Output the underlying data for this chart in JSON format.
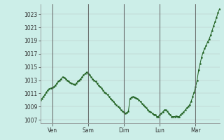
{
  "background_color": "#cceee8",
  "plot_bg_color": "#cceee8",
  "line_color": "#1a5c1a",
  "marker_color": "#1a5c1a",
  "grid_color": "#aaaaaa",
  "yticks": [
    1007,
    1009,
    1011,
    1013,
    1015,
    1017,
    1019,
    1021,
    1023
  ],
  "ylim": [
    1006.5,
    1024.5
  ],
  "xlim": [
    0,
    120
  ],
  "vline_positions": [
    8,
    32,
    56,
    80,
    104
  ],
  "day_positions": [
    8,
    32,
    56,
    80,
    104
  ],
  "day_labels": [
    "Ven",
    "Sam",
    "Dim",
    "Lun",
    "Mar"
  ],
  "y_values": [
    1010.0,
    1010.2,
    1010.5,
    1010.8,
    1011.2,
    1011.5,
    1011.7,
    1011.8,
    1011.9,
    1012.0,
    1012.2,
    1012.5,
    1012.8,
    1013.0,
    1013.2,
    1013.5,
    1013.4,
    1013.2,
    1013.0,
    1012.8,
    1012.6,
    1012.5,
    1012.4,
    1012.3,
    1012.5,
    1012.8,
    1013.0,
    1013.2,
    1013.5,
    1013.8,
    1014.0,
    1014.2,
    1014.0,
    1013.8,
    1013.5,
    1013.2,
    1013.0,
    1012.8,
    1012.5,
    1012.2,
    1012.0,
    1011.8,
    1011.5,
    1011.2,
    1011.0,
    1010.8,
    1010.5,
    1010.2,
    1010.0,
    1009.8,
    1009.5,
    1009.2,
    1009.0,
    1008.8,
    1008.5,
    1008.3,
    1008.2,
    1008.0,
    1008.1,
    1008.3,
    1010.2,
    1010.4,
    1010.5,
    1010.4,
    1010.3,
    1010.2,
    1010.0,
    1009.8,
    1009.5,
    1009.2,
    1009.0,
    1008.8,
    1008.5,
    1008.3,
    1008.2,
    1008.0,
    1007.8,
    1007.8,
    1007.5,
    1007.5,
    1007.8,
    1008.0,
    1008.2,
    1008.5,
    1008.5,
    1008.3,
    1008.0,
    1007.8,
    1007.5,
    1007.5,
    1007.5,
    1007.6,
    1007.5,
    1007.5,
    1007.8,
    1008.0,
    1008.2,
    1008.5,
    1008.8,
    1009.0,
    1009.3,
    1009.8,
    1010.5,
    1011.2,
    1012.0,
    1013.0,
    1014.5,
    1015.5,
    1016.5,
    1017.2,
    1017.8,
    1018.2,
    1018.8,
    1019.2,
    1019.8,
    1020.5,
    1021.2,
    1021.8,
    1022.5,
    1023.2,
    1023.8
  ]
}
